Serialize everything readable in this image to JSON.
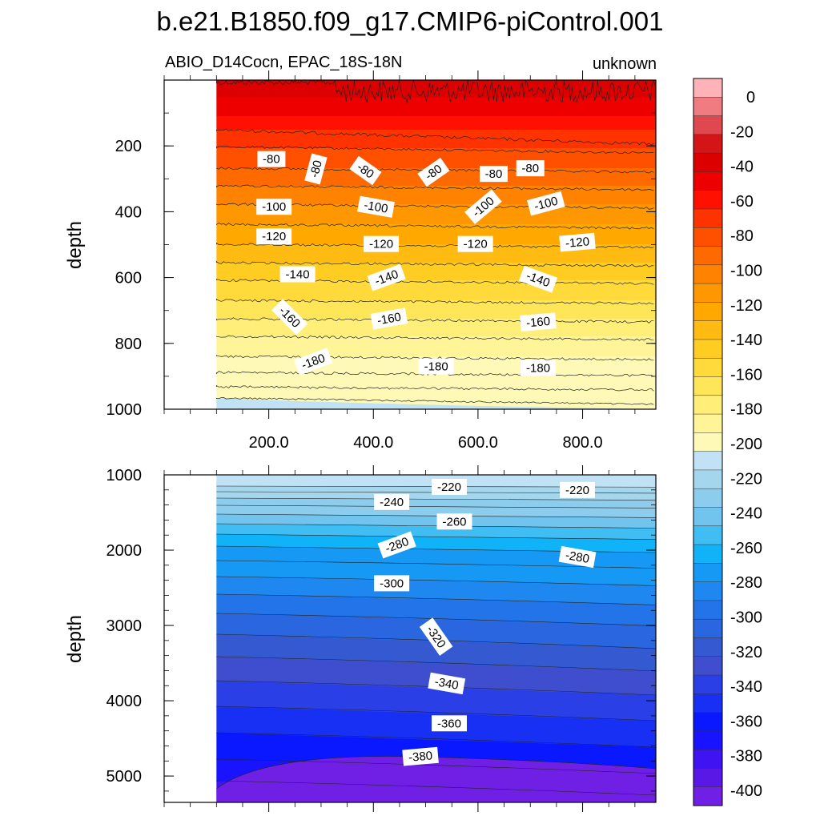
{
  "title": "b.e21.B1850.f09_g17.CMIP6-piControl.001",
  "subtitle_left": "ABIO_D14Cocn, EPAC_18S-18N",
  "subtitle_right": "unknown",
  "chart_data": [
    {
      "type": "heatmap",
      "panel": "upper",
      "ylabel": "depth",
      "xlim": [
        0,
        940
      ],
      "ylim": [
        1000,
        0
      ],
      "x_ticks": [
        200,
        400,
        600,
        800
      ],
      "x_tick_labels": [
        "200.0",
        "400.0",
        "600.0",
        "800.0"
      ],
      "y_ticks": [
        200,
        400,
        600,
        800,
        1000
      ],
      "y_tick_labels": [
        "200",
        "400",
        "600",
        "800",
        "1000"
      ],
      "data_x_start": 100,
      "contour_labels": [
        {
          "text": "-80",
          "x": 205,
          "y": 240,
          "angle": 0
        },
        {
          "text": "-80",
          "x": 290,
          "y": 270,
          "angle": -75
        },
        {
          "text": "-80",
          "x": 385,
          "y": 275,
          "angle": 35
        },
        {
          "text": "-80",
          "x": 515,
          "y": 280,
          "angle": -35
        },
        {
          "text": "-80",
          "x": 630,
          "y": 285,
          "angle": 0
        },
        {
          "text": "-80",
          "x": 700,
          "y": 268,
          "angle": 0
        },
        {
          "text": "-100",
          "x": 210,
          "y": 385,
          "angle": 0
        },
        {
          "text": "-100",
          "x": 405,
          "y": 385,
          "angle": 10
        },
        {
          "text": "-100",
          "x": 610,
          "y": 385,
          "angle": -40
        },
        {
          "text": "-100",
          "x": 730,
          "y": 375,
          "angle": -15
        },
        {
          "text": "-120",
          "x": 210,
          "y": 475,
          "angle": 0
        },
        {
          "text": "-120",
          "x": 415,
          "y": 498,
          "angle": 0
        },
        {
          "text": "-120",
          "x": 595,
          "y": 498,
          "angle": 0
        },
        {
          "text": "-120",
          "x": 790,
          "y": 493,
          "angle": -5
        },
        {
          "text": "-140",
          "x": 255,
          "y": 590,
          "angle": 0
        },
        {
          "text": "-140",
          "x": 425,
          "y": 600,
          "angle": -20
        },
        {
          "text": "-140",
          "x": 715,
          "y": 605,
          "angle": 20
        },
        {
          "text": "-160",
          "x": 240,
          "y": 720,
          "angle": 45
        },
        {
          "text": "-160",
          "x": 430,
          "y": 725,
          "angle": -10
        },
        {
          "text": "-160",
          "x": 715,
          "y": 735,
          "angle": -5
        },
        {
          "text": "-180",
          "x": 285,
          "y": 855,
          "angle": -20
        },
        {
          "text": "-180",
          "x": 520,
          "y": 870,
          "angle": 0
        },
        {
          "text": "-180",
          "x": 715,
          "y": 875,
          "angle": 0
        }
      ]
    },
    {
      "type": "heatmap",
      "panel": "lower",
      "ylabel": "depth",
      "xlim": [
        0,
        940
      ],
      "ylim": [
        5350,
        1000
      ],
      "y_ticks": [
        1000,
        2000,
        3000,
        4000,
        5000
      ],
      "y_tick_labels": [
        "1000",
        "2000",
        "3000",
        "4000",
        "5000"
      ],
      "data_x_start": 100,
      "contour_labels": [
        {
          "text": "-220",
          "x": 545,
          "y": 1160,
          "angle": 0
        },
        {
          "text": "-220",
          "x": 790,
          "y": 1200,
          "angle": 0
        },
        {
          "text": "-240",
          "x": 435,
          "y": 1360,
          "angle": 0
        },
        {
          "text": "-260",
          "x": 555,
          "y": 1620,
          "angle": 0
        },
        {
          "text": "-280",
          "x": 445,
          "y": 1930,
          "angle": -20
        },
        {
          "text": "-280",
          "x": 790,
          "y": 2090,
          "angle": 10
        },
        {
          "text": "-300",
          "x": 435,
          "y": 2440,
          "angle": 0
        },
        {
          "text": "-320",
          "x": 520,
          "y": 3150,
          "angle": 55
        },
        {
          "text": "-340",
          "x": 540,
          "y": 3770,
          "angle": 10
        },
        {
          "text": "-360",
          "x": 545,
          "y": 4300,
          "angle": 0
        },
        {
          "text": "-380",
          "x": 490,
          "y": 4740,
          "angle": -5
        }
      ]
    }
  ],
  "colorbar": {
    "labels": [
      "0",
      "-20",
      "-40",
      "-60",
      "-80",
      "-100",
      "-120",
      "-140",
      "-160",
      "-180",
      "-200",
      "-220",
      "-240",
      "-260",
      "-280",
      "-300",
      "-320",
      "-340",
      "-360",
      "-380",
      "-400"
    ],
    "colors": [
      "#FFB3B8",
      "#F07C82",
      "#E0484F",
      "#D41518",
      "#DD0000",
      "#EE0000",
      "#FF1000",
      "#FF3300",
      "#FF5000",
      "#FF6A00",
      "#FF8200",
      "#FF9700",
      "#FFA800",
      "#FFBB11",
      "#FFCC22",
      "#FFDA3A",
      "#FFE558",
      "#FFEE78",
      "#FFF498",
      "#FFF9B8",
      "#C0E2F4",
      "#A4D6EE",
      "#8CCDEE",
      "#70C4EE",
      "#40BDF2",
      "#10B2F8",
      "#1599F5",
      "#1E87F0",
      "#2374E8",
      "#2A66E0",
      "#3459D0",
      "#3E4ECE",
      "#2A40E6",
      "#1830F4",
      "#0A18FF",
      "#1814FF",
      "#3E14F2",
      "#5A18E6",
      "#7020E4"
    ]
  }
}
